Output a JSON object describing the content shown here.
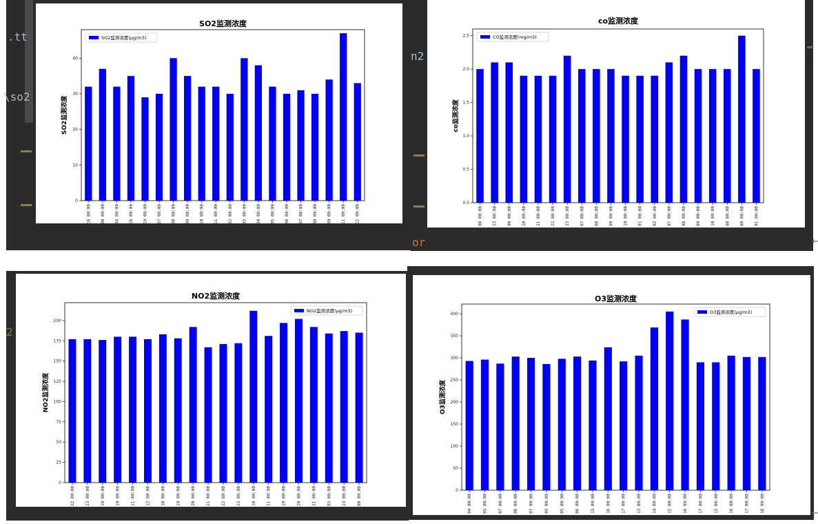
{
  "code_fragments": {
    "frag1": ".tt",
    "frag2": "\\so2",
    "frag3": "2",
    "frag4": "or",
    "frag5": "n2"
  },
  "colors": {
    "bar": "#0000ff",
    "editor_bg": "#2b2b2b"
  },
  "charts": {
    "so2": {
      "type": "bar",
      "title": "SO2监测浓度",
      "ylabel": "SO2监测浓度",
      "legend": "SO2监测浓度(μg/m3)",
      "legend_pos": "top-left",
      "ylim": [
        0,
        48
      ],
      "yticks": [
        0,
        10,
        20,
        30,
        40
      ],
      "ytick_labels": [
        "0",
        "10",
        "20",
        "30",
        "40"
      ],
      "categories": [
        "16 00:00",
        "00 00:00",
        "04 00:00",
        "16 00:00",
        "19 00:00",
        "07 00:00",
        "08 00:00",
        "09 00:00",
        "10 00:00",
        "11 00:00",
        "02 00:00",
        "03 00:00",
        "04 00:00",
        "05 00:00",
        "06 00:00",
        "07 00:00",
        "08 00:00",
        "09 00:00",
        "11 00:00",
        "12 00:00"
      ],
      "values": [
        32,
        37,
        32,
        35,
        29,
        30,
        40,
        35,
        32,
        32,
        30,
        40,
        38,
        32,
        30,
        31,
        30,
        34,
        47,
        33
      ]
    },
    "co": {
      "type": "bar",
      "title": "co监测浓度",
      "ylabel": "co监测浓度",
      "legend": "CO监测浓度(mg/m3)",
      "legend_pos": "top-left",
      "ylim": [
        0,
        2.6
      ],
      "yticks": [
        0,
        0.5,
        1.0,
        1.5,
        2.0,
        2.5
      ],
      "ytick_labels": [
        "0.0",
        "0.5",
        "1.0",
        "1.5",
        "2.0",
        "2.5"
      ],
      "categories": [
        "08 00:00",
        "23 00:00",
        "00 00:00",
        "20 00:00",
        "21 00:00",
        "22 00:00",
        "23 00:00",
        "07 00:00",
        "08 00:00",
        "09 00:00",
        "19 00:00",
        "01 00:00",
        "02 00:00",
        "07 00:00",
        "08 00:00",
        "09 00:00",
        "10 00:00",
        "08 00:00",
        "09 00:00",
        "01 00:00"
      ],
      "values": [
        2.0,
        2.1,
        2.1,
        1.9,
        1.9,
        1.9,
        2.2,
        2.0,
        2.0,
        2.0,
        1.9,
        1.9,
        1.9,
        2.1,
        2.2,
        2.0,
        2.0,
        2.0,
        2.5,
        2.0
      ]
    },
    "no2": {
      "type": "bar",
      "title": "NO2监测浓度",
      "ylabel": "NO2监测浓度",
      "legend": "NO2监测浓度(μg/m3)",
      "legend_pos": "top-right",
      "ylim": [
        0,
        222
      ],
      "yticks": [
        0,
        25,
        50,
        75,
        100,
        125,
        150,
        175,
        200
      ],
      "ytick_labels": [
        "0",
        "25",
        "50",
        "75",
        "100",
        "125",
        "150",
        "175",
        "200"
      ],
      "categories": [
        "22 00:00",
        "23 00:00",
        "19 00:00",
        "19 00:00",
        "11 00:00",
        "12 00:00",
        "18 00:00",
        "19 00:00",
        "20 00:00",
        "21 00:00",
        "22 00:00",
        "23 00:00",
        "10 00:00",
        "11 00:00",
        "19 00:00",
        "20 00:00",
        "21 00:00",
        "03 00:00",
        "23 00:00",
        "00 00:00"
      ],
      "values": [
        177,
        177,
        176,
        180,
        180,
        177,
        183,
        178,
        192,
        167,
        171,
        172,
        212,
        181,
        197,
        202,
        192,
        184,
        187,
        185
      ]
    },
    "o3": {
      "type": "bar",
      "title": "O3监测浓度",
      "ylabel": "O3监测浓度",
      "legend": "O3监测浓度(μg/m3)",
      "legend_pos": "top-right",
      "ylim": [
        0,
        422
      ],
      "yticks": [
        0,
        50,
        100,
        150,
        200,
        250,
        300,
        350,
        400
      ],
      "ytick_labels": [
        "0",
        "50",
        "100",
        "150",
        "200",
        "250",
        "300",
        "350",
        "400"
      ],
      "categories": [
        "04 00:00",
        "05 00:00",
        "07 00:00",
        "06 00:00",
        "07 00:00",
        "05 00:00",
        "05 00:00",
        "06 00:00",
        "15 00:00",
        "16 00:00",
        "17 00:00",
        "13 00:00",
        "14 00:00",
        "15 00:00",
        "16 00:00",
        "17 00:00",
        "15 00:00",
        "16 00:00",
        "17 00:00",
        "18 00:00"
      ],
      "values": [
        293,
        296,
        287,
        303,
        300,
        286,
        298,
        303,
        294,
        324,
        292,
        305,
        369,
        405,
        387,
        290,
        290,
        305,
        302,
        302
      ]
    }
  }
}
